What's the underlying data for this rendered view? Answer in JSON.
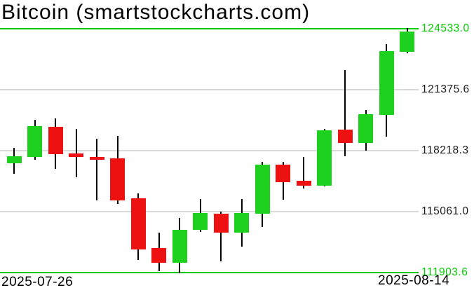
{
  "title": "Bitcoin (smartstockcharts.com)",
  "colors": {
    "up": "#1fd11f",
    "down": "#ee1111",
    "axis_green": "#00cc00",
    "grid": "#d9d9d9",
    "wick": "#000000",
    "label_dark": "#1a1a1a",
    "background": "#ffffff"
  },
  "x_axis": {
    "start_date": "2025-07-26",
    "end_date": "2025-08-14"
  },
  "y_axis": {
    "labels": [
      {
        "text": "124533.0",
        "value": 124533.0,
        "green": true
      },
      {
        "text": "121375.6",
        "value": 121375.6,
        "green": false
      },
      {
        "text": "118218.3",
        "value": 118218.3,
        "green": false
      },
      {
        "text": "115061.0",
        "value": 115061.0,
        "green": false
      },
      {
        "text": "111903.6",
        "value": 111903.6,
        "green": true
      }
    ]
  },
  "chart_data": {
    "type": "candlestick",
    "title": "Bitcoin (smartstockcharts.com)",
    "xlabel": "",
    "ylabel": "",
    "x_range": [
      "2025-07-26",
      "2025-08-14"
    ],
    "ylim": [
      111903.6,
      124533.0
    ],
    "gridlines": [
      121375.6,
      118218.3,
      115061.0
    ],
    "grid_on": true,
    "legend": "none",
    "candles": [
      {
        "open": 117570,
        "high": 118360,
        "low": 117020,
        "close": 117935
      },
      {
        "open": 117900,
        "high": 119820,
        "low": 117750,
        "close": 119480
      },
      {
        "open": 119450,
        "high": 119880,
        "low": 117290,
        "close": 118020
      },
      {
        "open": 118060,
        "high": 119330,
        "low": 116840,
        "close": 117875
      },
      {
        "open": 117900,
        "high": 118840,
        "low": 115630,
        "close": 117730
      },
      {
        "open": 117815,
        "high": 118990,
        "low": 115450,
        "close": 115655
      },
      {
        "open": 115750,
        "high": 115990,
        "low": 112560,
        "close": 113115
      },
      {
        "open": 113165,
        "high": 113965,
        "low": 111990,
        "close": 112410
      },
      {
        "open": 112410,
        "high": 114745,
        "low": 111850,
        "close": 114135
      },
      {
        "open": 114110,
        "high": 115725,
        "low": 113990,
        "close": 114985
      },
      {
        "open": 114960,
        "high": 115045,
        "low": 112470,
        "close": 113990
      },
      {
        "open": 113965,
        "high": 115710,
        "low": 113235,
        "close": 114985
      },
      {
        "open": 114960,
        "high": 117655,
        "low": 114245,
        "close": 117510
      },
      {
        "open": 117485,
        "high": 117655,
        "low": 115690,
        "close": 116575
      },
      {
        "open": 116660,
        "high": 117895,
        "low": 116275,
        "close": 116420
      },
      {
        "open": 116420,
        "high": 119355,
        "low": 116355,
        "close": 119270
      },
      {
        "open": 119295,
        "high": 122390,
        "low": 117935,
        "close": 118605
      },
      {
        "open": 118625,
        "high": 120325,
        "low": 118205,
        "close": 120120
      },
      {
        "open": 120060,
        "high": 123740,
        "low": 118930,
        "close": 123385
      },
      {
        "open": 123340,
        "high": 124570,
        "low": 123250,
        "close": 124395
      }
    ]
  }
}
